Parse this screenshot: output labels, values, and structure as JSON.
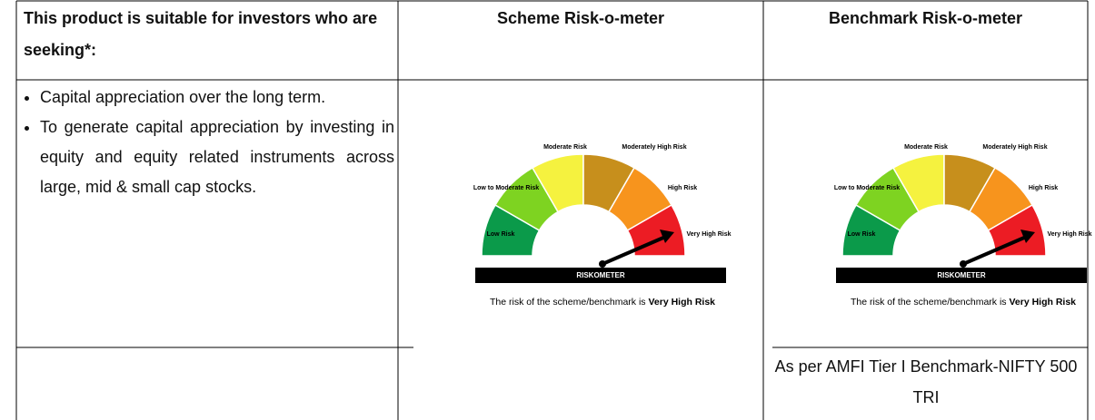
{
  "header": {
    "suitability": "This product is suitable for investors who are seeking*:",
    "scheme": "Scheme Risk-o-meter",
    "benchmark": "Benchmark Risk-o-meter"
  },
  "suitability_points": [
    "Capital appreciation over the long term.",
    "To generate capital appreciation by investing in equity and equity related instruments across large, mid & small cap stocks."
  ],
  "riskometers": [
    {
      "levels": [
        "Low Risk",
        "Low to Moderate Risk",
        "Moderate Risk",
        "Moderately High Risk",
        "High Risk",
        "Very High Risk"
      ],
      "title": "RISKOMETER",
      "caption": "The risk of the scheme/benchmark is",
      "risk": "Very High Risk"
    },
    {
      "levels": [
        "Low Risk",
        "Low to Moderate Risk",
        "Moderate Risk",
        "Moderately High Risk",
        "High Risk",
        "Very High Risk"
      ],
      "title": "RISKOMETER",
      "caption": "The risk of the scheme/benchmark is",
      "risk": "Very High Risk"
    }
  ],
  "benchmark_note": "As per AMFI Tier I Benchmark-NIFTY 500 TRI"
}
